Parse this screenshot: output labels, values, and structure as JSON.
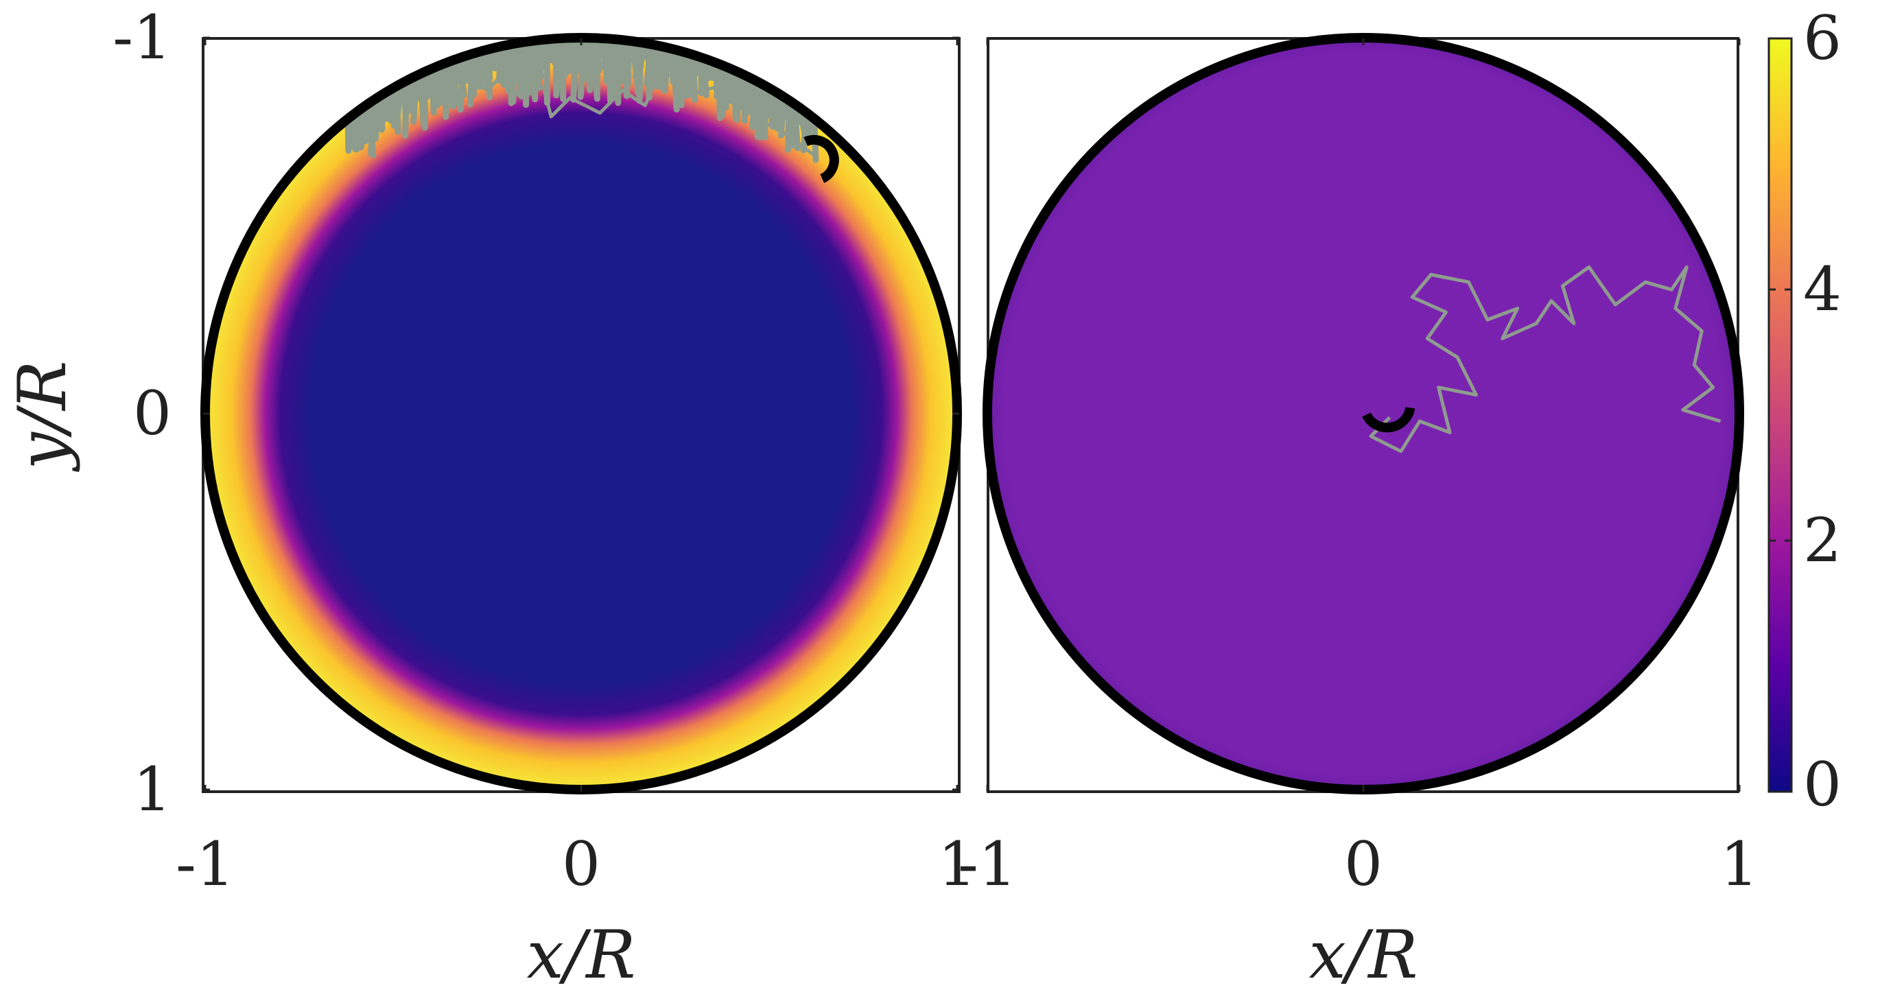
{
  "chart_data": [
    {
      "type": "heatmap",
      "panel": "left",
      "title": "",
      "xlabel": "x/R",
      "ylabel": "y/R",
      "xlim": [
        -1,
        1
      ],
      "ylim": [
        -1,
        1
      ],
      "y_axis_reversed": true,
      "xticks": [
        "-1",
        "0",
        "1"
      ],
      "yticks": [
        "-1",
        "0",
        "1"
      ],
      "domain": "unit disk (circle of radius R, thick black boundary)",
      "field": {
        "interior_value": 0,
        "boundary_value": 6,
        "boundary_layer_width_r": 0.13,
        "description": "near zero in the interior, rising sharply to ~6 in a thin ring at the wall"
      },
      "trajectory": {
        "color": "#8e9c8e",
        "end_marker": {
          "x": 0.63,
          "y": -0.68,
          "shape": "black arc"
        },
        "path": [
          [
            0.63,
            -0.68
          ],
          [
            0.55,
            -0.74
          ],
          [
            0.46,
            -0.79
          ],
          [
            0.4,
            -0.83
          ],
          [
            0.36,
            -0.87
          ],
          [
            0.3,
            -0.85
          ],
          [
            0.27,
            -0.91
          ],
          [
            0.2,
            -0.89
          ],
          [
            0.17,
            -0.82
          ],
          [
            0.11,
            -0.86
          ],
          [
            0.05,
            -0.8
          ],
          [
            -0.03,
            -0.84
          ],
          [
            -0.08,
            -0.79
          ],
          [
            -0.1,
            -0.87
          ],
          [
            -0.16,
            -0.84
          ],
          [
            -0.21,
            -0.9
          ],
          [
            -0.25,
            -0.86
          ],
          [
            -0.32,
            -0.91
          ],
          [
            -0.4,
            -0.88
          ],
          [
            -0.47,
            -0.84
          ],
          [
            -0.55,
            -0.82
          ],
          [
            -0.6,
            -0.8
          ]
        ],
        "dense_region": "band along the top wall from x≈-0.6 to x≈0.6"
      }
    },
    {
      "type": "heatmap",
      "panel": "right",
      "title": "",
      "xlabel": "x/R",
      "ylabel": "",
      "xlim": [
        -1,
        1
      ],
      "ylim": [
        -1,
        1
      ],
      "y_axis_reversed": true,
      "xticks": [
        "-1",
        "0",
        "1"
      ],
      "yticks": [],
      "domain": "unit disk (circle of radius R, thick black boundary)",
      "field": {
        "uniform_value": 1.2,
        "description": "approximately uniform value ≈1.2 over the whole disk"
      },
      "trajectory": {
        "color": "#8e9c8e",
        "end_marker": {
          "x": 0.07,
          "y": 0.01,
          "shape": "black arc"
        },
        "path": [
          [
            0.07,
            0.01
          ],
          [
            0.02,
            0.06
          ],
          [
            0.1,
            0.1
          ],
          [
            0.15,
            0.02
          ],
          [
            0.23,
            0.05
          ],
          [
            0.2,
            -0.07
          ],
          [
            0.3,
            -0.05
          ],
          [
            0.25,
            -0.15
          ],
          [
            0.17,
            -0.2
          ],
          [
            0.22,
            -0.27
          ],
          [
            0.13,
            -0.31
          ],
          [
            0.18,
            -0.37
          ],
          [
            0.28,
            -0.35
          ],
          [
            0.33,
            -0.25
          ],
          [
            0.41,
            -0.28
          ],
          [
            0.37,
            -0.2
          ],
          [
            0.46,
            -0.24
          ],
          [
            0.5,
            -0.3
          ],
          [
            0.56,
            -0.24
          ],
          [
            0.53,
            -0.34
          ],
          [
            0.6,
            -0.39
          ],
          [
            0.67,
            -0.29
          ],
          [
            0.75,
            -0.35
          ],
          [
            0.82,
            -0.33
          ],
          [
            0.86,
            -0.39
          ],
          [
            0.83,
            -0.28
          ],
          [
            0.9,
            -0.22
          ],
          [
            0.88,
            -0.13
          ],
          [
            0.93,
            -0.07
          ],
          [
            0.85,
            -0.01
          ],
          [
            0.95,
            0.02
          ]
        ]
      }
    }
  ],
  "colorbar": {
    "min": 0,
    "max": 6,
    "ticks": [
      "0",
      "2",
      "4",
      "6"
    ],
    "colormap": "plasma",
    "colors": [
      "#0d0887",
      "#5c01a6",
      "#9c179e",
      "#cc4778",
      "#ed7953",
      "#fdb42f",
      "#f0f921"
    ]
  },
  "colors": {
    "disk_boundary": "#000000",
    "axes_frame": "#222222",
    "left_interior": "#1a1a88",
    "left_ring": "#f5d12a",
    "right_uniform": "#7a22b0",
    "trajectory": "#8e9c8e"
  }
}
